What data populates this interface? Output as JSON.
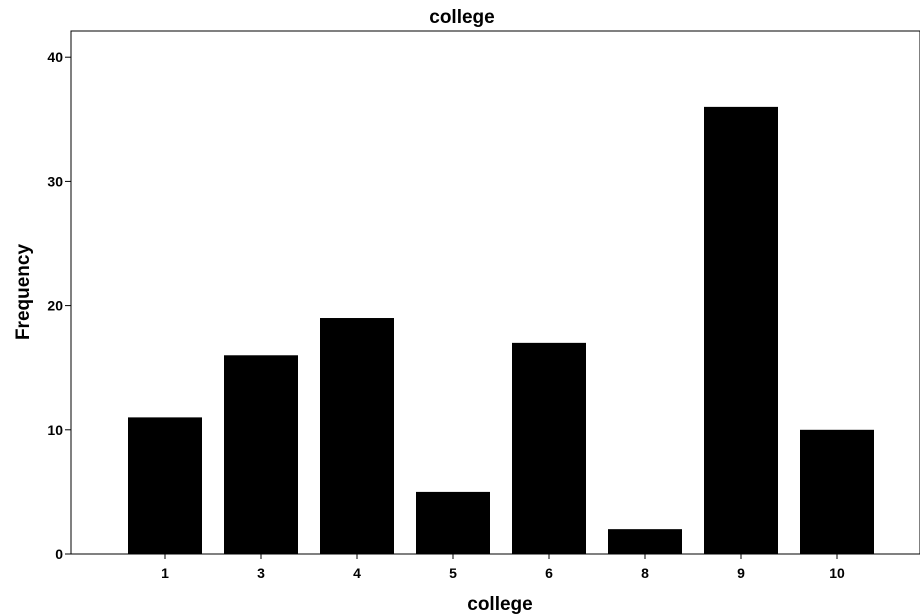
{
  "chart_data": {
    "type": "bar",
    "title": "college",
    "xlabel": "college",
    "ylabel": "Frequency",
    "categories": [
      "1",
      "3",
      "4",
      "5",
      "6",
      "8",
      "9",
      "10"
    ],
    "values": [
      11,
      16,
      19,
      5,
      17,
      2,
      36,
      10
    ],
    "ylim": [
      0,
      42
    ],
    "yticks": [
      0,
      10,
      20,
      30,
      40
    ],
    "grid": false,
    "legend": "none",
    "bar_color": "#000000"
  }
}
